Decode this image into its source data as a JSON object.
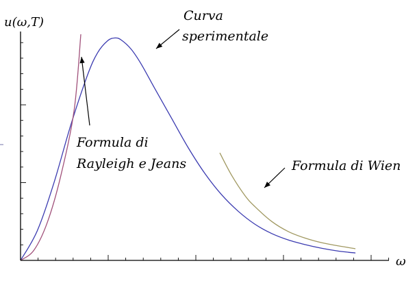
{
  "chart_data": {
    "type": "line",
    "title": "",
    "xlabel": "ω",
    "ylabel": "u(ω,T)",
    "grid": false,
    "legend": "none",
    "xlim": [
      0,
      11
    ],
    "ylim": [
      0,
      1.22
    ],
    "x_ticks": "unlabeled",
    "y_ticks": "unlabeled",
    "series": [
      {
        "id": "experimental",
        "color": "#3a3ab0",
        "x": [
          0,
          0.5,
          1.0,
          1.5,
          2.0,
          2.3,
          2.6,
          2.82,
          3.0,
          3.3,
          3.6,
          4.0,
          4.5,
          5.0,
          5.5,
          6.0,
          6.5,
          7.0,
          7.5,
          8.0,
          8.5,
          9.0,
          9.5,
          10.0
        ],
        "y": [
          0,
          0.16,
          0.42,
          0.73,
          1.0,
          1.12,
          1.185,
          1.2,
          1.19,
          1.14,
          1.06,
          0.93,
          0.77,
          0.61,
          0.47,
          0.355,
          0.265,
          0.195,
          0.145,
          0.11,
          0.085,
          0.065,
          0.05,
          0.04
        ]
      },
      {
        "id": "rayleigh-jeans",
        "color": "#a0507a",
        "x": [
          0,
          0.4,
          0.8,
          1.2,
          1.6,
          1.8
        ],
        "y": [
          0,
          0.055,
          0.205,
          0.455,
          0.81,
          1.22
        ]
      },
      {
        "id": "wien",
        "color": "#a09860",
        "x": [
          5.95,
          6.3,
          6.7,
          7.0,
          7.5,
          8.0,
          8.5,
          9.0,
          9.5,
          10.0
        ],
        "y": [
          0.58,
          0.46,
          0.35,
          0.29,
          0.21,
          0.155,
          0.12,
          0.095,
          0.078,
          0.063
        ]
      }
    ],
    "annotations": [
      {
        "id": "curva",
        "lines": [
          "Curva",
          "sperimentale"
        ]
      },
      {
        "id": "rj",
        "lines": [
          "Formula di",
          "Rayleigh e Jeans"
        ]
      },
      {
        "id": "wien",
        "lines": [
          "Formula di Wien"
        ]
      }
    ]
  }
}
